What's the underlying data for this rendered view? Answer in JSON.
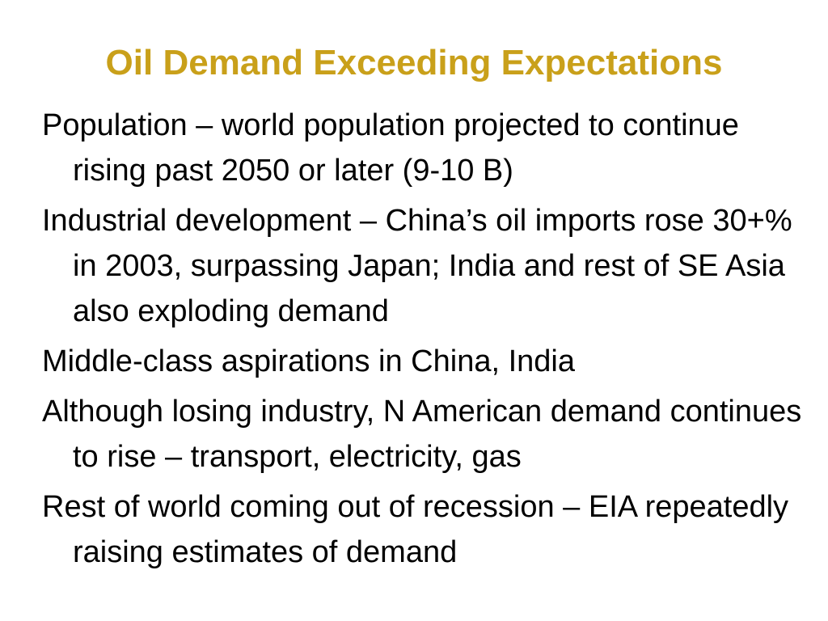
{
  "slide": {
    "title": "Oil Demand Exceeding Expectations",
    "title_color": "#C9A01A",
    "bullets": [
      "Population – world population projected to continue rising past 2050 or later (9-10 B)",
      "Industrial development – China’s oil imports rose 30+% in 2003, surpassing Japan; India and rest of SE Asia also exploding demand",
      "Middle-class aspirations in China, India",
      "Although losing industry, N American demand continues to rise – transport, electricity, gas",
      "Rest of world coming out of recession – EIA repeatedly raising estimates of demand"
    ]
  }
}
